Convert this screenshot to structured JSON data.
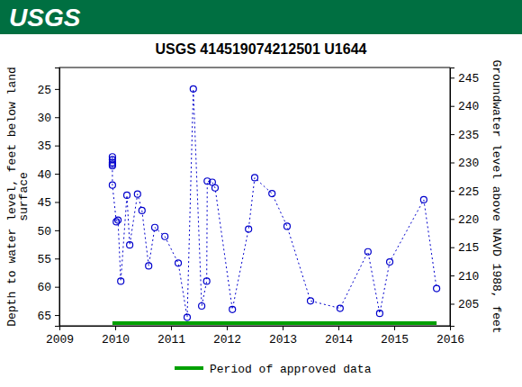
{
  "header": {
    "logo": "USGS"
  },
  "chart_data": {
    "type": "scatter",
    "title": "USGS 414519074212501 U1644",
    "y_label": [
      "Depth to water level, feet below land",
      "surface"
    ],
    "y2_label": "Groundwater level above NAVD 1988, feet",
    "xlim": [
      2009,
      2016
    ],
    "xticks": [
      2009,
      2010,
      2011,
      2012,
      2013,
      2014,
      2015,
      2016
    ],
    "ylim": [
      66.9,
      21.2
    ],
    "yticks": [
      25,
      30,
      35,
      40,
      45,
      50,
      55,
      60,
      65
    ],
    "y2lim": [
      201.1,
      246.8
    ],
    "y2ticks": [
      205,
      210,
      215,
      220,
      225,
      230,
      235,
      240,
      245
    ],
    "legend": "bottom",
    "series": [
      {
        "color": "#0000cc",
        "marker": "circle-open",
        "line_style": "dotted",
        "x": [
          2009.95,
          2009.95,
          2009.95,
          2009.95,
          2009.95,
          2009.95,
          2010.02,
          2010.05,
          2010.1,
          2010.21,
          2010.26,
          2010.4,
          2010.48,
          2010.6,
          2010.71,
          2010.89,
          2011.13,
          2011.29,
          2011.4,
          2011.55,
          2011.64,
          2011.65,
          2011.74,
          2011.79,
          2012.1,
          2012.39,
          2012.5,
          2012.81,
          2013.08,
          2013.5,
          2014.03,
          2014.53,
          2014.74,
          2014.92,
          2015.53,
          2015.76
        ],
        "values": [
          37.0,
          37.5,
          38.0,
          38.3,
          38.6,
          42.0,
          48.5,
          48.2,
          59.0,
          43.8,
          52.6,
          43.6,
          46.5,
          56.3,
          49.5,
          51.1,
          55.8,
          65.4,
          25.0,
          63.4,
          59.0,
          41.3,
          41.5,
          42.5,
          64.0,
          49.8,
          40.7,
          43.5,
          49.3,
          62.5,
          63.8,
          53.8,
          64.7,
          55.6,
          44.6,
          60.3
        ]
      },
      {
        "name": "Period of approved data",
        "type": "period",
        "color": "#00a000",
        "x": [
          2009.95,
          2015.76
        ]
      }
    ]
  }
}
